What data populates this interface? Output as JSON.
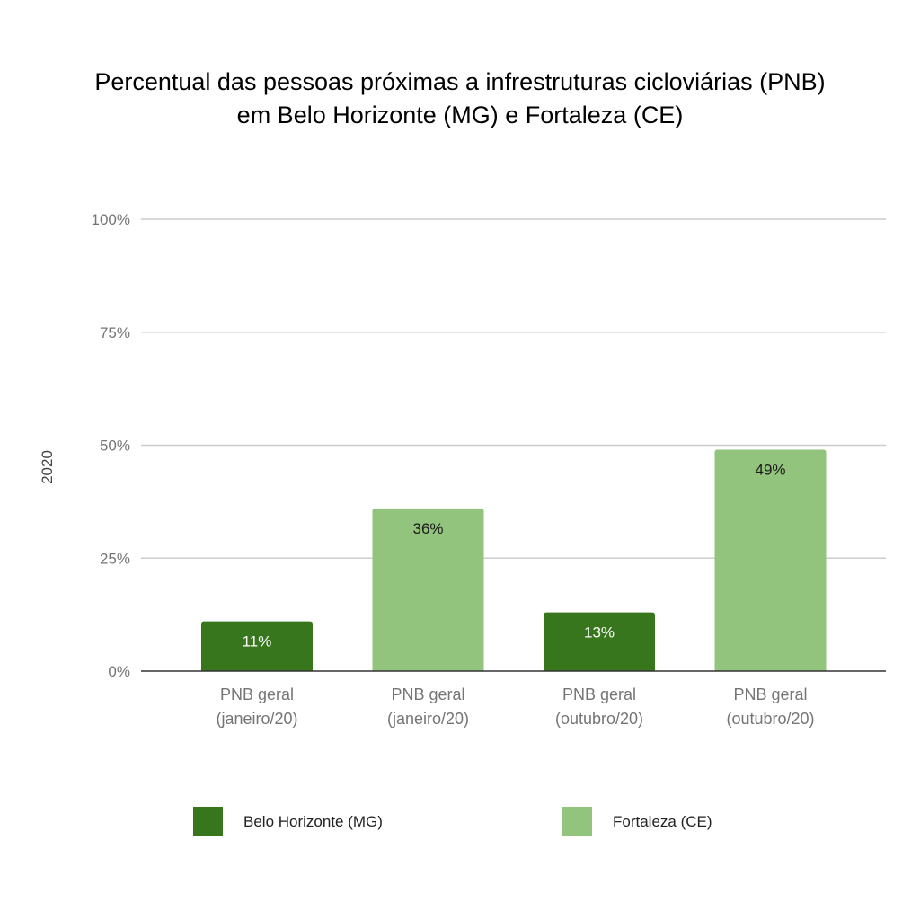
{
  "chart_data": {
    "type": "bar",
    "title": [
      "Percentual das pessoas próximas a infrestruturas cicloviárias (PNB)",
      "em Belo Horizonte (MG) e Fortaleza (CE)"
    ],
    "ylabel": "2020",
    "xlabel": "",
    "ylim": [
      0,
      100
    ],
    "yticks": [
      0,
      25,
      50,
      75,
      100
    ],
    "ytick_labels": [
      "0%",
      "25%",
      "50%",
      "75%",
      "100%"
    ],
    "grid": true,
    "legend_position": "bottom",
    "categories": [
      [
        "PNB geral",
        "(janeiro/20)"
      ],
      [
        "PNB geral",
        "(janeiro/20)"
      ],
      [
        "PNB geral",
        "(outubro/20)"
      ],
      [
        "PNB geral",
        "(outubro/20)"
      ]
    ],
    "bars": [
      {
        "series": "Belo Horizonte (MG)",
        "value": 11,
        "label": "11%"
      },
      {
        "series": "Fortaleza (CE)",
        "value": 36,
        "label": "36%"
      },
      {
        "series": "Belo Horizonte (MG)",
        "value": 13,
        "label": "13%"
      },
      {
        "series": "Fortaleza (CE)",
        "value": 49,
        "label": "49%"
      }
    ],
    "series": [
      {
        "name": "Belo Horizonte (MG)",
        "color": "#38761d",
        "label_color": "#ffffff"
      },
      {
        "name": "Fortaleza (CE)",
        "color": "#93c47d",
        "label_color": "#1a1a1a"
      }
    ]
  }
}
